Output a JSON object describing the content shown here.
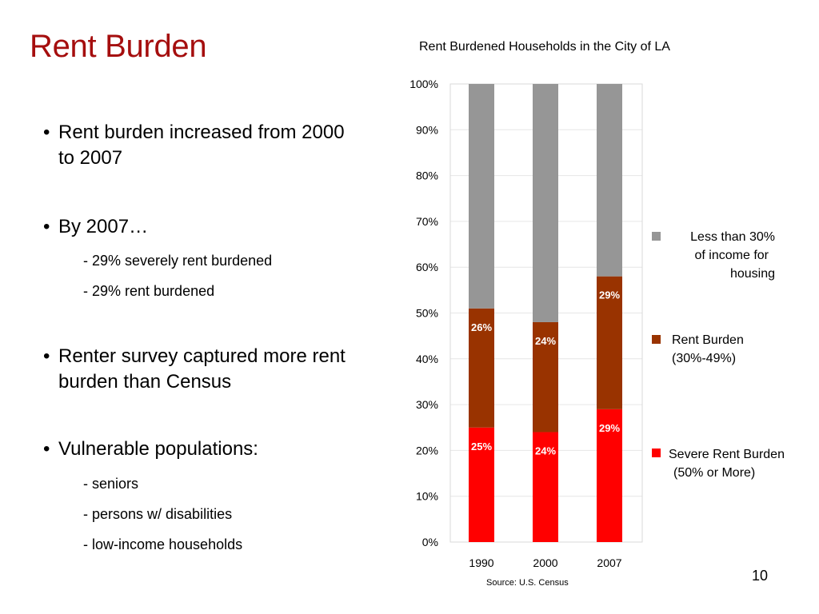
{
  "slide": {
    "title": "Rent Burden",
    "page_number": "10",
    "source": "Source: U.S. Census"
  },
  "bullets": [
    {
      "text": "Rent burden increased from 2000 to 2007",
      "subitems": []
    },
    {
      "text": "By 2007…",
      "subitems": [
        "- 29% severely rent burdened",
        "- 29% rent burdened"
      ]
    },
    {
      "text": "Renter survey captured more rent burden than Census",
      "subitems": []
    },
    {
      "text": "Vulnerable populations:",
      "subitems": [
        "- seniors",
        "- persons w/ disabilities",
        "- low-income households"
      ]
    }
  ],
  "chart_data": {
    "type": "bar",
    "stacked": true,
    "title": "Rent Burdened Households in the City of LA",
    "categories": [
      "1990",
      "2000",
      "2007"
    ],
    "ylim": [
      0,
      100
    ],
    "ytick_labels": [
      "0%",
      "10%",
      "20%",
      "30%",
      "40%",
      "50%",
      "60%",
      "70%",
      "80%",
      "90%",
      "100%"
    ],
    "grid": true,
    "legend_position": "right",
    "series": [
      {
        "name": "Severe Rent Burden (50% or More)",
        "values": [
          25,
          24,
          29
        ],
        "labels": [
          "25%",
          "24%",
          "29%"
        ],
        "color": "#ff0000"
      },
      {
        "name": "Rent Burden (30%-49%)",
        "values": [
          26,
          24,
          29
        ],
        "labels": [
          "26%",
          "24%",
          "29%"
        ],
        "color": "#993300"
      },
      {
        "name": "Less than 30% of income for housing",
        "values": [
          49,
          52,
          42
        ],
        "labels": [
          "",
          "",
          ""
        ],
        "color": "#969696"
      }
    ]
  },
  "legend": [
    {
      "lines": [
        "Less than 30%",
        "of income for ",
        "housing"
      ],
      "color": "#969696"
    },
    {
      "lines": [
        "Rent Burden",
        "(30%-49%)"
      ],
      "color": "#993300"
    },
    {
      "lines": [
        "Severe Rent Burden",
        "(50% or More)"
      ],
      "color": "#ff0000"
    }
  ],
  "colors": {
    "title": "#a50e0e",
    "data_label": "#ffffff",
    "gridline": "#e6e6e6",
    "plot_border": "#d9d9d9"
  }
}
